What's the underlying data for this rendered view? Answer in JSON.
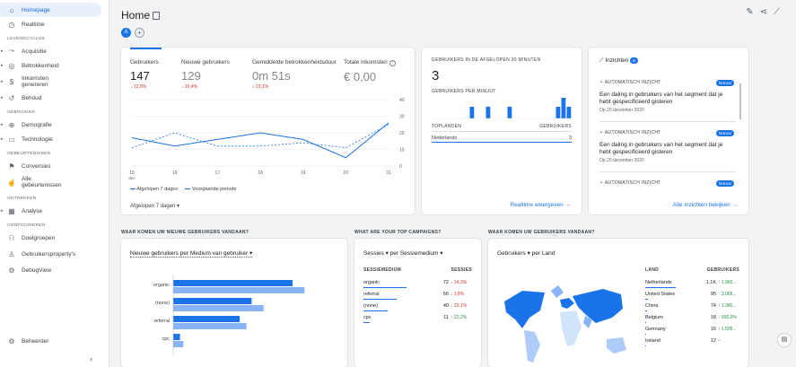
{
  "sidebar": {
    "items_top": [
      {
        "label": "Homepage",
        "icon": "home-icon",
        "glyph": "⌂"
      },
      {
        "label": "Realtime",
        "icon": "clock-icon",
        "glyph": "◷"
      }
    ],
    "sections": [
      {
        "title": "LEVENSCYCLUS",
        "items": [
          {
            "label": "Acquisitie",
            "icon": "acquisition-icon",
            "glyph": "⤳"
          },
          {
            "label": "Betrokkenheid",
            "icon": "engagement-icon",
            "glyph": "◎"
          },
          {
            "label": "Inkomsten genereren",
            "icon": "monetization-icon",
            "glyph": "$"
          },
          {
            "label": "Behoud",
            "icon": "retention-icon",
            "glyph": "↺"
          }
        ]
      },
      {
        "title": "GEBRUIKER",
        "items": [
          {
            "label": "Demografie",
            "icon": "globe-icon",
            "glyph": "⊕"
          },
          {
            "label": "Technologie",
            "icon": "devices-icon",
            "glyph": "▭"
          }
        ]
      },
      {
        "title": "GEBEURTENISSEN",
        "items": [
          {
            "label": "Conversies",
            "icon": "flag-icon",
            "glyph": "⚑"
          },
          {
            "label": "Alle gebeurtenissen",
            "icon": "touch-icon",
            "glyph": "☝"
          }
        ]
      },
      {
        "title": "ONTDEKKEN",
        "items": [
          {
            "label": "Analyse",
            "icon": "analysis-icon",
            "glyph": "▦"
          }
        ]
      },
      {
        "title": "CONFIGUREREN",
        "items": [
          {
            "label": "Doelgroepen",
            "icon": "audience-icon",
            "glyph": "⚇"
          },
          {
            "label": "Gebruikersproperty's",
            "icon": "user-prop-icon",
            "glyph": "♙"
          },
          {
            "label": "DebugView",
            "icon": "debug-icon",
            "glyph": "⚙"
          }
        ]
      }
    ],
    "admin": {
      "label": "Beheerder",
      "icon": "gear-icon",
      "glyph": "⚙"
    }
  },
  "header": {
    "title": "Home",
    "segment": "A",
    "add": "+"
  },
  "overview": {
    "metrics": [
      {
        "label": "Gebruikers",
        "value": "147",
        "change": "↓ 12,0%"
      },
      {
        "label": "Nieuwe gebruikers",
        "value": "129",
        "change": "↓ 16,4%"
      },
      {
        "label": "Gemiddelde betrokkenheidsduur",
        "value": "0m 51s",
        "change": "↓ 22,1%"
      },
      {
        "label": "Totale inkomsten",
        "value": "€ 0,00",
        "change": ""
      }
    ],
    "legend": [
      "Afgelopen 7 dagen",
      "Voorgaande periode"
    ],
    "date_range": "Afgelopen 7 dagen",
    "x_sub": "dec"
  },
  "chart_data": {
    "type": "line",
    "x": [
      "15",
      "16",
      "17",
      "18",
      "19",
      "20",
      "21"
    ],
    "series": [
      {
        "name": "Afgelopen 7 dagen",
        "values": [
          17,
          12,
          16,
          20,
          16,
          5,
          26
        ]
      },
      {
        "name": "Voorgaande periode",
        "values": [
          11,
          20,
          12,
          12,
          14,
          11,
          25
        ]
      }
    ],
    "yticks": [
      "0",
      "10",
      "20",
      "30",
      "40"
    ],
    "ylim": [
      0,
      40
    ]
  },
  "realtime": {
    "title": "GEBRUIKERS IN DE AFGELOPEN 30 MINUTEN",
    "value": "3",
    "sub": "GEBRUIKERS PER MINUUT",
    "bars": [
      0,
      0,
      0,
      0,
      0,
      0,
      0,
      1,
      0,
      0,
      1,
      0,
      0,
      0,
      1,
      0,
      0,
      0,
      0,
      0,
      0,
      0,
      0,
      1,
      2,
      1
    ],
    "col_country": "TOPLANDEN",
    "col_users": "GEBRUIKERS",
    "country": "Nederlands",
    "country_users": "3",
    "link": "Realtime weergeven →"
  },
  "insights": {
    "title": "Inzichten",
    "count": "6",
    "items": [
      {
        "tag": "AUTOMATISCH INZICHT",
        "badge": "Nieuw",
        "text": "Een daling in gebruikers van het segment dat je hebt gespecificeerd gisteren",
        "date": "Op 20 december 2020"
      },
      {
        "tag": "AUTOMATISCH INZICHT",
        "badge": "Nieuw",
        "text": "Een daling in gebruikers van het segment dat je hebt gespecificeerd gisteren",
        "date": "Op 20 december 2020"
      },
      {
        "tag": "AUTOMATISCH INZICHT",
        "badge": "Nieuw",
        "text": "",
        "date": ""
      }
    ],
    "link": "Alle inzichten bekijken →"
  },
  "acq": {
    "section": "WAAR KOMEN UW NIEUWE GEBRUIKERS VANDAAN?",
    "dropdown": "Nieuwe gebruikers per Medium van gebruiker",
    "bars": [
      {
        "label": "organic",
        "cur": 0.7,
        "prev": 0.77
      },
      {
        "label": "(none)",
        "cur": 0.46,
        "prev": 0.53
      },
      {
        "label": "referral",
        "cur": 0.39,
        "prev": 0.43
      },
      {
        "label": "cpc",
        "cur": 0.04,
        "prev": 0.06
      }
    ]
  },
  "campaigns": {
    "section": "WHAT ARE YOUR TOP CAMPAIGNS?",
    "dropdown": "Sessies ▾ per Sessiemedium ▾",
    "col1": "SESSIEMEDIUM",
    "col2": "SESSIES",
    "rows": [
      {
        "name": "organic",
        "value": "72",
        "change": "↓ 14,3%",
        "frac": 1.0
      },
      {
        "name": "referral",
        "value": "56",
        "change": "↓ 1,8%",
        "frac": 0.78
      },
      {
        "name": "(none)",
        "value": "40",
        "change": "↓ 23,1%",
        "frac": 0.56
      },
      {
        "name": "cpc",
        "value": "11",
        "change": "↑ 22,2%",
        "frac": 0.15
      }
    ]
  },
  "geo": {
    "section": "WAAR KOMEN UW GEBRUIKERS VANDAAN?",
    "dropdown": "Gebruikers ▾ per Land",
    "col1": "LAND",
    "col2": "GEBRUIKERS",
    "rows": [
      {
        "name": "Netherlands",
        "value": "1,1K",
        "change": "↑ 1.960...",
        "frac": 1.0
      },
      {
        "name": "United States",
        "value": "95",
        "change": "↑ 3.066...",
        "frac": 0.09
      },
      {
        "name": "China",
        "value": "74",
        "change": "↑ 1.380...",
        "frac": 0.07
      },
      {
        "name": "Belgium",
        "value": "18",
        "change": "↑ 500,0%",
        "frac": 0.02
      },
      {
        "name": "Germany",
        "value": "16",
        "change": "↑ 1.500...",
        "frac": 0.02
      },
      {
        "name": "Ireland",
        "value": "12",
        "change": "–",
        "frac": 0.01
      }
    ]
  },
  "colors": {
    "accent": "#1a73e8",
    "light": "#8ab4f8",
    "neg": "#d93025"
  }
}
